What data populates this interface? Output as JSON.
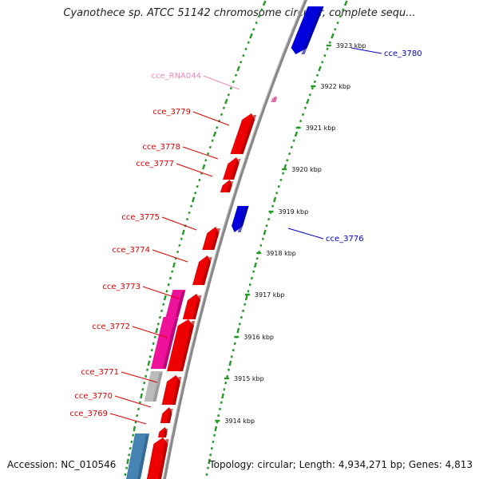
{
  "title": "Cyanothece sp. ATCC 51142 chromosome circular, complete sequ...",
  "footer": {
    "accession": "Accession: NC_010546",
    "summary": "Topology: circular; Length: 4,934,271 bp; Genes: 4,813"
  },
  "ticks": [
    "3923 kbp",
    "3922 kbp",
    "3921 kbp",
    "3920 kbp",
    "3919 kbp",
    "3918 kbp",
    "3917 kbp",
    "3916 kbp",
    "3915 kbp",
    "3914 kbp"
  ],
  "genes": [
    {
      "name": "cce_RNA044",
      "strand": "forward",
      "type": "rna",
      "color": "#ee88bb"
    },
    {
      "name": "cce_3780",
      "strand": "reverse",
      "type": "cds",
      "color": "#0000dd"
    },
    {
      "name": "cce_3779",
      "strand": "forward",
      "type": "cds",
      "color": "#ee0000"
    },
    {
      "name": "cce_3778",
      "strand": "forward",
      "type": "cds",
      "color": "#ee0000"
    },
    {
      "name": "cce_3777",
      "strand": "forward",
      "type": "cds",
      "color": "#ee0000"
    },
    {
      "name": "cce_3776",
      "strand": "reverse",
      "type": "cds",
      "color": "#0000dd"
    },
    {
      "name": "cce_3775",
      "strand": "forward",
      "type": "cds",
      "color": "#ee0000"
    },
    {
      "name": "cce_3774",
      "strand": "forward",
      "type": "cds",
      "color": "#ee0000"
    },
    {
      "name": "cce_3773",
      "strand": "forward",
      "type": "cds",
      "color": "#ee0000"
    },
    {
      "name": "cce_3772",
      "strand": "forward",
      "type": "cds",
      "color": "#ee0000"
    },
    {
      "name": "cce_3771",
      "strand": "forward",
      "type": "cds",
      "color": "#ee0000"
    },
    {
      "name": "cce_3770",
      "strand": "forward",
      "type": "cds",
      "color": "#ee0000"
    },
    {
      "name": "cce_3769",
      "strand": "forward",
      "type": "cds",
      "color": "#ee0000"
    }
  ],
  "colors": {
    "forward_cds": "#ee0000",
    "reverse_cds": "#0000dd",
    "rna": "#ee88bb",
    "magenta_feature": "#ee1199",
    "grey_feature": "#bbbbbb",
    "steelblue_feature": "#4682b4",
    "backbone": "#888888",
    "ring_dots": "#229922",
    "label_red": "#dd0000",
    "label_blue": "#0000cc"
  }
}
